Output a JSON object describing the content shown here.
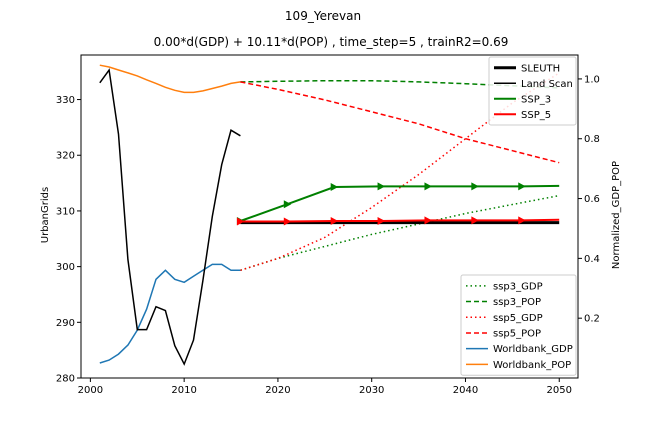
{
  "chart_data": {
    "type": "line",
    "title": "109_Yerevan",
    "subtitle": "0.00*d(GDP) + 10.11*d(POP) , time_step=5 , trainR2=0.69",
    "xlabel": "",
    "ylabel": "UrbanGrids",
    "y2label": "Normalized_GDP_POP",
    "xlim": [
      1999,
      2052
    ],
    "ylim": [
      280,
      338
    ],
    "y2lim": [
      0.0,
      1.08
    ],
    "xticks": [
      "2000",
      "2010",
      "2020",
      "2030",
      "2040",
      "2050"
    ],
    "yticks": [
      "280",
      "290",
      "300",
      "310",
      "320",
      "330"
    ],
    "y2ticks": [
      "0.2",
      "0.4",
      "0.6",
      "0.8",
      "1.0"
    ],
    "grid": false,
    "legend_top_right": {
      "placement": "top-right",
      "entries": [
        {
          "label": "SLEUTH",
          "color": "#000000",
          "width": 3,
          "dash": "solid"
        },
        {
          "label": "Land Scan",
          "color": "#000000",
          "width": 1.5,
          "dash": "solid"
        },
        {
          "label": "SSP_3",
          "color": "#008000",
          "width": 2,
          "dash": "solid"
        },
        {
          "label": "SSP_5",
          "color": "#ff0000",
          "width": 2,
          "dash": "solid"
        }
      ]
    },
    "legend_bottom_right": {
      "placement": "bottom-right",
      "entries": [
        {
          "label": "ssp3_GDP",
          "color": "#008000",
          "dash": "dotted"
        },
        {
          "label": "ssp3_POP",
          "color": "#008000",
          "dash": "dashed"
        },
        {
          "label": "ssp5_GDP",
          "color": "#ff0000",
          "dash": "dotted"
        },
        {
          "label": "ssp5_POP",
          "color": "#ff0000",
          "dash": "dashed"
        },
        {
          "label": "Worldbank_GDP",
          "color": "#1f77b4",
          "dash": "solid"
        },
        {
          "label": "Worldbank_POP",
          "color": "#ff7f0e",
          "dash": "solid"
        }
      ]
    },
    "series_left": [
      {
        "name": "Land Scan",
        "color": "#000000",
        "width": 1.5,
        "dash": "solid",
        "marker": "none",
        "x": [
          2001,
          2002,
          2003,
          2004,
          2005,
          2006,
          2007,
          2008,
          2009,
          2010,
          2011,
          2012,
          2013,
          2014,
          2015,
          2016
        ],
        "y": [
          333,
          335.3,
          323.8,
          301.3,
          288.7,
          288.7,
          292.8,
          292.1,
          285.8,
          282.5,
          286.8,
          297.5,
          309,
          318.3,
          324.5,
          323.5
        ]
      },
      {
        "name": "SLEUTH",
        "color": "#000000",
        "width": 3,
        "dash": "solid",
        "marker": "none",
        "x": [
          2016,
          2050
        ],
        "y": [
          307.9,
          307.9
        ]
      },
      {
        "name": "SSP_3",
        "color": "#008000",
        "width": 2,
        "dash": "solid",
        "marker": "triangle",
        "x": [
          2016,
          2021,
          2026,
          2031,
          2036,
          2041,
          2046,
          2050
        ],
        "y": [
          308.2,
          311.2,
          314.3,
          314.4,
          314.4,
          314.4,
          314.4,
          314.5
        ]
      },
      {
        "name": "SSP_5",
        "color": "#ff0000",
        "width": 2,
        "dash": "solid",
        "marker": "triangle",
        "x": [
          2016,
          2021,
          2026,
          2031,
          2036,
          2041,
          2046,
          2050
        ],
        "y": [
          308.1,
          308.1,
          308.2,
          308.2,
          308.3,
          308.3,
          308.3,
          308.4
        ]
      }
    ],
    "series_right": [
      {
        "name": "Worldbank_GDP",
        "color": "#1f77b4",
        "dash": "solid",
        "x": [
          2001,
          2002,
          2003,
          2004,
          2005,
          2006,
          2007,
          2008,
          2009,
          2010,
          2011,
          2012,
          2013,
          2014,
          2015,
          2016
        ],
        "y": [
          0.05,
          0.06,
          0.08,
          0.11,
          0.16,
          0.23,
          0.33,
          0.36,
          0.33,
          0.32,
          0.34,
          0.36,
          0.38,
          0.38,
          0.36,
          0.36
        ]
      },
      {
        "name": "Worldbank_POP",
        "color": "#ff7f0e",
        "dash": "solid",
        "x": [
          2001,
          2002,
          2003,
          2004,
          2005,
          2006,
          2007,
          2008,
          2009,
          2010,
          2011,
          2012,
          2013,
          2014,
          2015,
          2016
        ],
        "y": [
          1.046,
          1.04,
          1.03,
          1.02,
          1.01,
          0.997,
          0.985,
          0.972,
          0.962,
          0.955,
          0.955,
          0.96,
          0.968,
          0.976,
          0.985,
          0.99
        ]
      },
      {
        "name": "ssp3_GDP",
        "color": "#008000",
        "dash": "dotted",
        "x": [
          2016,
          2020,
          2025,
          2030,
          2035,
          2040,
          2045,
          2050
        ],
        "y": [
          0.36,
          0.4,
          0.44,
          0.48,
          0.515,
          0.55,
          0.58,
          0.61
        ]
      },
      {
        "name": "ssp3_POP",
        "color": "#008000",
        "dash": "dashed",
        "x": [
          2016,
          2020,
          2025,
          2030,
          2035,
          2040,
          2045,
          2050
        ],
        "y": [
          0.99,
          0.992,
          0.994,
          0.994,
          0.99,
          0.984,
          0.977,
          0.97
        ]
      },
      {
        "name": "ssp5_GDP",
        "color": "#ff0000",
        "dash": "dotted",
        "x": [
          2016,
          2020,
          2025,
          2030,
          2035,
          2040,
          2045,
          2050
        ],
        "y": [
          0.36,
          0.4,
          0.47,
          0.57,
          0.68,
          0.8,
          0.92,
          1.02
        ]
      },
      {
        "name": "ssp5_POP",
        "color": "#ff0000",
        "dash": "dashed",
        "x": [
          2016,
          2020,
          2025,
          2030,
          2035,
          2040,
          2045,
          2050
        ],
        "y": [
          0.99,
          0.965,
          0.93,
          0.89,
          0.85,
          0.8,
          0.76,
          0.72
        ]
      }
    ]
  }
}
